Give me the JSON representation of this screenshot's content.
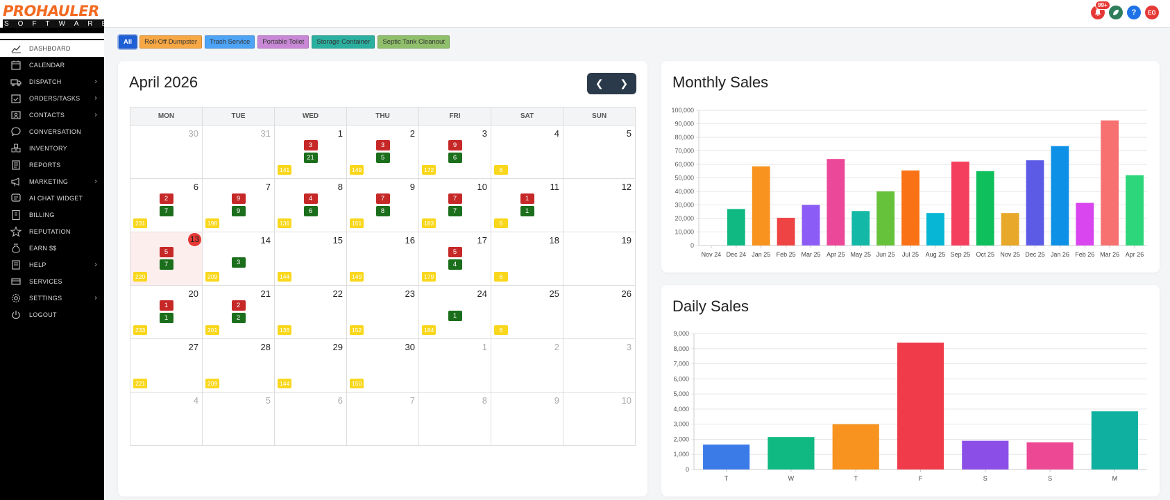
{
  "brand": {
    "name": "PROHAULER",
    "sub": "SOFTWARE"
  },
  "header": {
    "notifications_badge": "99+",
    "avatar_initials": "EG"
  },
  "sidebar": {
    "items": [
      {
        "label": "DASHBOARD",
        "icon": "chart-line-icon",
        "active": true,
        "has_submenu": false
      },
      {
        "label": "CALENDAR",
        "icon": "calendar-icon",
        "active": false,
        "has_submenu": false
      },
      {
        "label": "DISPATCH",
        "icon": "truck-icon",
        "active": false,
        "has_submenu": true
      },
      {
        "label": "ORDERS/TASKS",
        "icon": "calendar-check-icon",
        "active": false,
        "has_submenu": true
      },
      {
        "label": "CONTACTS",
        "icon": "contact-card-icon",
        "active": false,
        "has_submenu": true
      },
      {
        "label": "CONVERSATION",
        "icon": "chat-bubble-icon",
        "active": false,
        "has_submenu": false
      },
      {
        "label": "INVENTORY",
        "icon": "boxes-icon",
        "active": false,
        "has_submenu": false
      },
      {
        "label": "REPORTS",
        "icon": "report-icon",
        "active": false,
        "has_submenu": false
      },
      {
        "label": "MARKETING",
        "icon": "megaphone-icon",
        "active": false,
        "has_submenu": true
      },
      {
        "label": "AI CHAT WIDGET",
        "icon": "ai-chat-icon",
        "active": false,
        "has_submenu": false
      },
      {
        "label": "BILLING",
        "icon": "billing-icon",
        "active": false,
        "has_submenu": false
      },
      {
        "label": "REPUTATION",
        "icon": "star-icon",
        "active": false,
        "has_submenu": false
      },
      {
        "label": "EARN $$",
        "icon": "money-bag-icon",
        "active": false,
        "has_submenu": false
      },
      {
        "label": "HELP",
        "icon": "help-book-icon",
        "active": false,
        "has_submenu": true
      },
      {
        "label": "SERVICES",
        "icon": "services-icon",
        "active": false,
        "has_submenu": false
      },
      {
        "label": "SETTINGS",
        "icon": "gear-icon",
        "active": false,
        "has_submenu": true
      },
      {
        "label": "LOGOUT",
        "icon": "power-icon",
        "active": false,
        "has_submenu": false
      }
    ]
  },
  "filters": [
    {
      "label": "All",
      "color": "#1e5fd6",
      "active": true
    },
    {
      "label": "Roll-Off Dumpster",
      "color": "#f7a743",
      "active": false
    },
    {
      "label": "Trash Service",
      "color": "#4da3f5",
      "active": false
    },
    {
      "label": "Portable Toilet",
      "color": "#c888d6",
      "active": false
    },
    {
      "label": "Storage Container",
      "color": "#2bb0a0",
      "active": false
    },
    {
      "label": "Septic Tank Cleanout",
      "color": "#8fbf6a",
      "active": false
    }
  ],
  "calendar": {
    "title": "April 2026",
    "weekdays": [
      "MON",
      "TUE",
      "WED",
      "THU",
      "FRI",
      "SAT",
      "SUN"
    ],
    "weeks": [
      [
        {
          "day": "30",
          "muted": true
        },
        {
          "day": "31",
          "muted": true
        },
        {
          "day": "1",
          "red": "3",
          "green": "21",
          "yellow": "141"
        },
        {
          "day": "2",
          "red": "3",
          "green": "5",
          "yellow": "149"
        },
        {
          "day": "3",
          "red": "9",
          "green": "6",
          "yellow": "172"
        },
        {
          "day": "4",
          "yellow": "6"
        },
        {
          "day": "5"
        }
      ],
      [
        {
          "day": "6",
          "red": "2",
          "green": "7",
          "yellow": "231"
        },
        {
          "day": "7",
          "red": "9",
          "green": "9",
          "yellow": "198"
        },
        {
          "day": "8",
          "red": "4",
          "green": "6",
          "yellow": "136"
        },
        {
          "day": "9",
          "red": "7",
          "green": "8",
          "yellow": "151"
        },
        {
          "day": "10",
          "red": "7",
          "green": "7",
          "yellow": "183"
        },
        {
          "day": "11",
          "red": "1",
          "green": "1",
          "yellow": "6"
        },
        {
          "day": "12"
        }
      ],
      [
        {
          "day": "13",
          "today": true,
          "red": "5",
          "green": "7",
          "yellow": "220"
        },
        {
          "day": "14",
          "green": "3",
          "yellow": "209"
        },
        {
          "day": "15",
          "yellow": "144"
        },
        {
          "day": "16",
          "yellow": "149"
        },
        {
          "day": "17",
          "red": "5",
          "green": "4",
          "yellow": "179"
        },
        {
          "day": "18",
          "yellow": "6"
        },
        {
          "day": "19"
        }
      ],
      [
        {
          "day": "20",
          "red": "1",
          "green": "1",
          "yellow": "233"
        },
        {
          "day": "21",
          "red": "2",
          "green": "2",
          "yellow": "201"
        },
        {
          "day": "22",
          "yellow": "136"
        },
        {
          "day": "23",
          "yellow": "152"
        },
        {
          "day": "24",
          "green": "1",
          "yellow": "184"
        },
        {
          "day": "25",
          "yellow": "6"
        },
        {
          "day": "26"
        }
      ],
      [
        {
          "day": "27",
          "yellow": "221"
        },
        {
          "day": "28",
          "yellow": "209"
        },
        {
          "day": "29",
          "yellow": "144"
        },
        {
          "day": "30",
          "yellow": "150"
        },
        {
          "day": "1",
          "muted": true
        },
        {
          "day": "2",
          "muted": true
        },
        {
          "day": "3",
          "muted": true
        }
      ],
      [
        {
          "day": "4",
          "muted": true
        },
        {
          "day": "5",
          "muted": true
        },
        {
          "day": "6",
          "muted": true
        },
        {
          "day": "7",
          "muted": true
        },
        {
          "day": "8",
          "muted": true
        },
        {
          "day": "9",
          "muted": true
        },
        {
          "day": "10",
          "muted": true
        }
      ]
    ]
  },
  "monthly_sales": {
    "title": "Monthly Sales"
  },
  "daily_sales": {
    "title": "Daily Sales"
  },
  "chart_data": [
    {
      "type": "bar",
      "title": "Monthly Sales",
      "categories": [
        "Nov 24",
        "Dec 24",
        "Jan 25",
        "Feb 25",
        "Mar 25",
        "Apr 25",
        "May 25",
        "Jun 25",
        "Jul 25",
        "Aug 25",
        "Sep 25",
        "Oct 25",
        "Nov 25",
        "Dec 25",
        "Jan 26",
        "Feb 26",
        "Mar 26",
        "Apr 26"
      ],
      "values": [
        0,
        27000,
        58500,
        20500,
        30000,
        64000,
        25500,
        40000,
        55500,
        24000,
        62000,
        55000,
        24000,
        63000,
        73500,
        31500,
        92500,
        52000
      ],
      "colors": [
        "#10b981",
        "#10b981",
        "#f7931e",
        "#ef4444",
        "#8b5cf6",
        "#ec4899",
        "#14b8a6",
        "#65c23a",
        "#f97316",
        "#06b6d4",
        "#f43f5e",
        "#0fbf5b",
        "#e8a82a",
        "#5b5be6",
        "#0e90e6",
        "#d946ef",
        "#f87171",
        "#2dd67a"
      ],
      "ylim": [
        0,
        100000
      ],
      "yticks": [
        "0",
        "10,000",
        "20,000",
        "30,000",
        "40,000",
        "50,000",
        "60,000",
        "70,000",
        "80,000",
        "90,000",
        "100,000"
      ],
      "grid": true
    },
    {
      "type": "bar",
      "title": "Daily Sales",
      "categories": [
        "T",
        "W",
        "T",
        "F",
        "S",
        "S",
        "M"
      ],
      "values": [
        1650,
        2150,
        3000,
        8400,
        1900,
        1800,
        3850
      ],
      "colors": [
        "#3b7be8",
        "#10b981",
        "#f7931e",
        "#ef3b4a",
        "#8b4fe8",
        "#ec4893",
        "#10b0a0"
      ],
      "ylim": [
        0,
        9000
      ],
      "yticks": [
        "0",
        "1,000",
        "2,000",
        "3,000",
        "4,000",
        "5,000",
        "6,000",
        "7,000",
        "8,000",
        "9,000"
      ],
      "grid": true
    }
  ]
}
